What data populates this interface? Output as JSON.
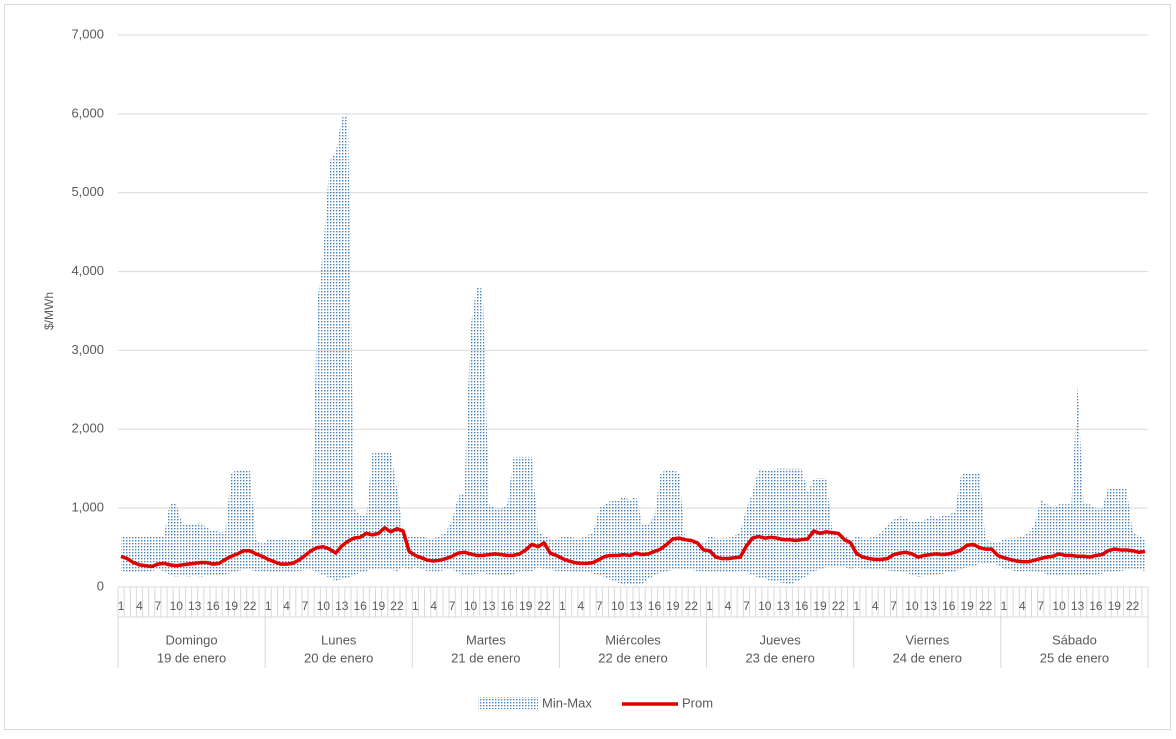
{
  "chart_data": {
    "type": "band-line",
    "y_label": "$/MWh",
    "ylim": [
      0,
      7000
    ],
    "yticks": [
      0,
      {
        "value": 1000,
        "label": "1,000"
      },
      {
        "value": 2000,
        "label": "2,000"
      },
      {
        "value": 3000,
        "label": "3,000"
      },
      {
        "value": 4000,
        "label": "4,000"
      },
      {
        "value": 5000,
        "label": "5,000"
      },
      {
        "value": 6000,
        "label": "6,000"
      },
      {
        "value": 7000,
        "label": "7,000"
      }
    ],
    "grid": true,
    "legend": "bottom",
    "categories": [
      "1",
      null,
      null,
      "4",
      null,
      null,
      "7",
      null,
      null,
      "10",
      null,
      null,
      "13",
      null,
      null,
      "16",
      null,
      null,
      "19",
      null,
      null,
      "22",
      null,
      null,
      "1",
      null,
      null,
      "4",
      null,
      null,
      "7",
      null,
      null,
      "10",
      null,
      null,
      "13",
      null,
      null,
      "16",
      null,
      null,
      "19",
      null,
      null,
      "22",
      null,
      null,
      "1",
      null,
      null,
      "4",
      null,
      null,
      "7",
      null,
      null,
      "10",
      null,
      null,
      "13",
      null,
      null,
      "16",
      null,
      null,
      "19",
      null,
      null,
      "22",
      null,
      null,
      "1",
      null,
      null,
      "4",
      null,
      null,
      "7",
      null,
      null,
      "10",
      null,
      null,
      "13",
      null,
      null,
      "16",
      null,
      null,
      "19",
      null,
      null,
      "22",
      null,
      null,
      "1",
      null,
      null,
      "4",
      null,
      null,
      "7",
      null,
      null,
      "10",
      null,
      null,
      "13",
      null,
      null,
      "16",
      null,
      null,
      "19",
      null,
      null,
      "22",
      null,
      null,
      "1",
      null,
      null,
      "4",
      null,
      null,
      "7",
      null,
      null,
      "10",
      null,
      null,
      "13",
      null,
      null,
      "16",
      null,
      null,
      "19",
      null,
      null,
      "22",
      null,
      null,
      "1",
      null,
      null,
      "4",
      null,
      null,
      "7",
      null,
      null,
      "10",
      null,
      null,
      "13",
      null,
      null,
      "16",
      null,
      null,
      "19",
      null,
      null,
      "22",
      null,
      null
    ],
    "groups": [
      {
        "day": "Domingo",
        "date": "19 de enero"
      },
      {
        "day": "Lunes",
        "date": "20 de enero"
      },
      {
        "day": "Martes",
        "date": "21 de enero"
      },
      {
        "day": "Miércoles",
        "date": "22 de enero"
      },
      {
        "day": "Jueves",
        "date": "23 de enero"
      },
      {
        "day": "Viernes",
        "date": "24 de enero"
      },
      {
        "day": "Sábado",
        "date": "25 de enero"
      }
    ],
    "series": [
      {
        "name": "Min-Max",
        "color": "#2e75b6",
        "high": [
          650,
          650,
          650,
          650,
          650,
          650,
          650,
          650,
          1080,
          1050,
          800,
          800,
          800,
          820,
          750,
          720,
          700,
          700,
          1450,
          1480,
          1480,
          1480,
          600,
          550,
          600,
          600,
          620,
          620,
          600,
          600,
          600,
          620,
          3600,
          4300,
          5400,
          5500,
          5950,
          6000,
          1000,
          900,
          900,
          1700,
          1700,
          1700,
          1700,
          1250,
          700,
          650,
          650,
          650,
          620,
          620,
          650,
          700,
          850,
          1150,
          1200,
          3300,
          3800,
          3780,
          1050,
          1000,
          1000,
          1050,
          1650,
          1650,
          1650,
          1650,
          700,
          650,
          620,
          600,
          650,
          650,
          620,
          620,
          650,
          700,
          1000,
          1050,
          1100,
          1100,
          1150,
          1100,
          1150,
          800,
          800,
          900,
          1450,
          1480,
          1480,
          1450,
          600,
          600,
          580,
          550,
          650,
          620,
          620,
          620,
          650,
          700,
          1000,
          1200,
          1500,
          1480,
          1480,
          1500,
          1500,
          1500,
          1500,
          1500,
          1200,
          1380,
          1380,
          1380,
          700,
          700,
          650,
          600,
          650,
          620,
          620,
          650,
          680,
          800,
          850,
          900,
          870,
          830,
          820,
          850,
          900,
          880,
          900,
          920,
          950,
          1420,
          1450,
          1450,
          1450,
          600,
          580,
          550,
          620,
          620,
          620,
          650,
          680,
          800,
          1100,
          1050,
          1000,
          1050,
          1050,
          1050,
          2550,
          1050,
          1050,
          1000,
          1000,
          1250,
          1250,
          1250,
          1250,
          700,
          650,
          600
        ],
        "low": [
          200,
          180,
          180,
          180,
          200,
          200,
          220,
          200,
          150,
          130,
          150,
          130,
          150,
          130,
          150,
          150,
          150,
          160,
          180,
          200,
          220,
          220,
          200,
          200,
          200,
          180,
          180,
          180,
          200,
          200,
          220,
          220,
          180,
          150,
          120,
          80,
          100,
          120,
          150,
          180,
          200,
          230,
          220,
          220,
          220,
          200,
          250,
          220,
          250,
          230,
          200,
          200,
          200,
          220,
          220,
          180,
          150,
          150,
          170,
          180,
          160,
          160,
          150,
          150,
          160,
          200,
          200,
          200,
          250,
          230,
          220,
          200,
          200,
          200,
          180,
          180,
          180,
          170,
          150,
          130,
          80,
          60,
          20,
          30,
          20,
          40,
          100,
          150,
          180,
          200,
          220,
          230,
          230,
          220,
          200,
          200,
          200,
          180,
          180,
          180,
          200,
          200,
          200,
          150,
          120,
          100,
          80,
          70,
          50,
          30,
          60,
          100,
          150,
          200,
          220,
          250,
          250,
          250,
          250,
          230,
          250,
          230,
          220,
          220,
          220,
          210,
          200,
          200,
          190,
          150,
          130,
          140,
          150,
          160,
          170,
          190,
          200,
          230,
          250,
          270,
          290,
          300,
          300,
          280,
          230,
          220,
          200,
          200,
          200,
          200,
          190,
          160,
          150,
          150,
          160,
          150,
          140,
          150,
          150,
          160,
          170,
          190,
          200,
          200,
          220,
          230,
          230,
          200
        ]
      },
      {
        "name": "Prom",
        "color": "#e00000",
        "values": [
          390,
          360,
          310,
          280,
          270,
          260,
          290,
          300,
          280,
          270,
          280,
          290,
          300,
          310,
          310,
          290,
          300,
          350,
          390,
          420,
          460,
          460,
          420,
          390,
          350,
          320,
          290,
          290,
          300,
          340,
          400,
          460,
          500,
          510,
          480,
          430,
          520,
          580,
          620,
          630,
          680,
          660,
          680,
          750,
          700,
          740,
          710,
          450,
          400,
          370,
          340,
          330,
          340,
          360,
          390,
          430,
          440,
          420,
          400,
          400,
          410,
          420,
          410,
          400,
          400,
          420,
          470,
          540,
          510,
          560,
          430,
          400,
          360,
          330,
          310,
          300,
          300,
          310,
          350,
          390,
          400,
          400,
          410,
          400,
          430,
          410,
          420,
          450,
          480,
          540,
          610,
          620,
          600,
          590,
          560,
          470,
          460,
          380,
          360,
          360,
          370,
          380,
          520,
          620,
          640,
          620,
          630,
          620,
          600,
          600,
          590,
          600,
          610,
          710,
          680,
          700,
          690,
          680,
          600,
          560,
          420,
          380,
          360,
          350,
          350,
          360,
          410,
          430,
          440,
          420,
          380,
          400,
          410,
          420,
          410,
          420,
          440,
          470,
          530,
          540,
          500,
          480,
          480,
          400,
          370,
          350,
          330,
          320,
          320,
          340,
          360,
          380,
          390,
          420,
          400,
          400,
          390,
          390,
          380,
          400,
          410,
          460,
          480,
          470,
          470,
          460,
          440,
          450
        ]
      }
    ]
  }
}
